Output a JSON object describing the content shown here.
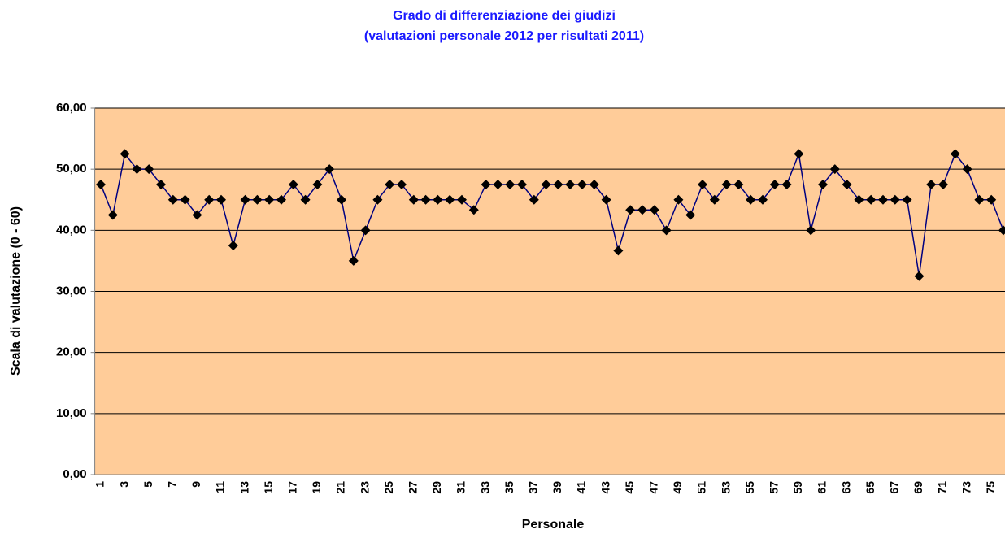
{
  "chart_data": {
    "type": "line",
    "title": "Grado di differenziazione dei giudizi",
    "subtitle": "(valutazioni personale 2012 per risultati 2011)",
    "x_label": "Personale",
    "y_label": "Scala di valutazione (0 - 60)",
    "categories": [
      "1",
      null,
      "3",
      null,
      "5",
      null,
      "7",
      null,
      "9",
      null,
      "11",
      null,
      "13",
      null,
      "15",
      null,
      "17",
      null,
      "19",
      null,
      "21",
      null,
      "23",
      null,
      "25",
      null,
      "27",
      null,
      "29",
      null,
      "31",
      null,
      "33",
      null,
      "35",
      null,
      "37",
      null,
      "39",
      null,
      "41",
      null,
      "43",
      null,
      "45",
      null,
      "47",
      null,
      "49",
      null,
      "51",
      null,
      "53",
      null,
      "55",
      null,
      "57",
      null,
      "59",
      null,
      "61",
      null,
      "63",
      null,
      "65",
      null,
      "67",
      null,
      "69",
      null,
      "71",
      null,
      "73",
      null,
      "75",
      null
    ],
    "series": [
      {
        "color": "#000080",
        "marker_color": "#000000",
        "values": [
          47.5,
          42.5,
          52.5,
          50,
          50,
          47.5,
          45,
          45,
          42.5,
          45,
          45,
          37.5,
          45,
          45,
          45,
          45,
          47.5,
          45,
          47.5,
          50,
          45,
          35,
          40,
          45,
          47.5,
          47.5,
          45,
          45,
          45,
          45,
          45,
          43.33,
          47.5,
          47.5,
          47.5,
          47.5,
          45,
          47.5,
          47.5,
          47.5,
          47.5,
          47.5,
          45,
          36.67,
          43.33,
          43.33,
          43.33,
          40,
          45,
          42.5,
          47.5,
          45,
          47.5,
          47.5,
          45,
          45,
          47.5,
          47.5,
          52.5,
          40,
          47.5,
          50,
          47.5,
          45,
          45,
          45,
          45,
          45,
          32.5,
          47.5,
          47.5,
          52.5,
          50,
          45,
          45,
          40
        ]
      }
    ],
    "ylim": [
      0,
      60
    ],
    "yticks": [
      {
        "value": 0,
        "label": "0,00"
      },
      {
        "value": 10,
        "label": "10,00"
      },
      {
        "value": 20,
        "label": "20,00"
      },
      {
        "value": 30,
        "label": "30,00"
      },
      {
        "value": 40,
        "label": "40,00"
      },
      {
        "value": 50,
        "label": "50,00"
      },
      {
        "value": 60,
        "label": "60,00"
      }
    ],
    "grid": true,
    "plot_background": "#FFCC99"
  }
}
